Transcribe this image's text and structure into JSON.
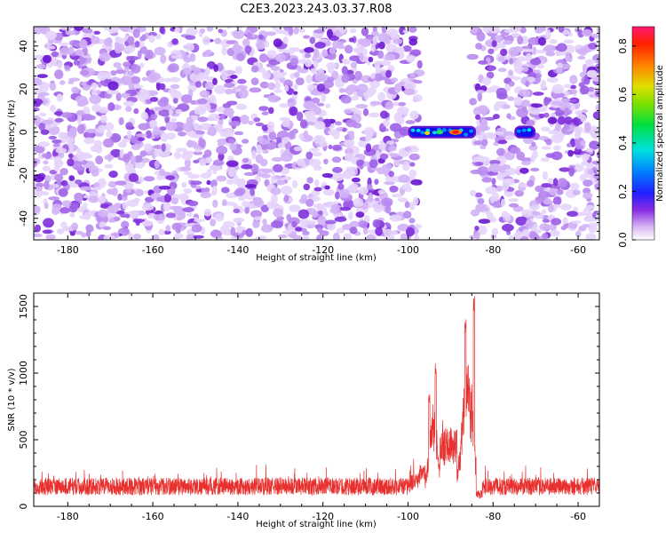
{
  "title": "C2E3.2023.243.03.37.R08",
  "chart_data": [
    {
      "type": "heatmap",
      "xlabel": "Height of straight line (km)",
      "ylabel": "Frequency (Hz)",
      "xlim": [
        -188,
        -55
      ],
      "ylim": [
        -50,
        49
      ],
      "xticks": [
        -180,
        -160,
        -140,
        -120,
        -100,
        -80,
        -60
      ],
      "yticks": [
        -40,
        -20,
        0,
        20,
        40
      ],
      "colorbar": {
        "label": "Normalized spectral amplitude",
        "range": [
          0,
          0.88
        ],
        "ticks": [
          0.0,
          0.2,
          0.4,
          0.6,
          0.8
        ]
      },
      "signal_regions": [
        {
          "x_start": -100,
          "x_end": -84,
          "freq": 0,
          "peak_amplitude": 0.85
        },
        {
          "x_start": -75,
          "x_end": -70,
          "freq": 0,
          "peak_amplitude": 0.3
        }
      ],
      "gap_region": {
        "x_start": -98,
        "x_end": -84
      }
    },
    {
      "type": "line",
      "xlabel": "Height of straight line (km)",
      "ylabel": "SNR (10 * v/v)",
      "xlim": [
        -188,
        -55
      ],
      "ylim": [
        0,
        1600
      ],
      "xticks": [
        -180,
        -160,
        -140,
        -120,
        -100,
        -80,
        -60
      ],
      "yticks": [
        0,
        500,
        1000,
        1500
      ],
      "series": [
        {
          "color": "#e8302e",
          "baseline_level": 150,
          "baseline_noise_range": [
            60,
            300
          ],
          "features": [
            {
              "x": -95,
              "peak": 850
            },
            {
              "x": -93.5,
              "peak": 1080
            },
            {
              "x": -86.5,
              "peak": 1430
            },
            {
              "x": -84.5,
              "peak": 1580
            }
          ]
        }
      ]
    }
  ]
}
